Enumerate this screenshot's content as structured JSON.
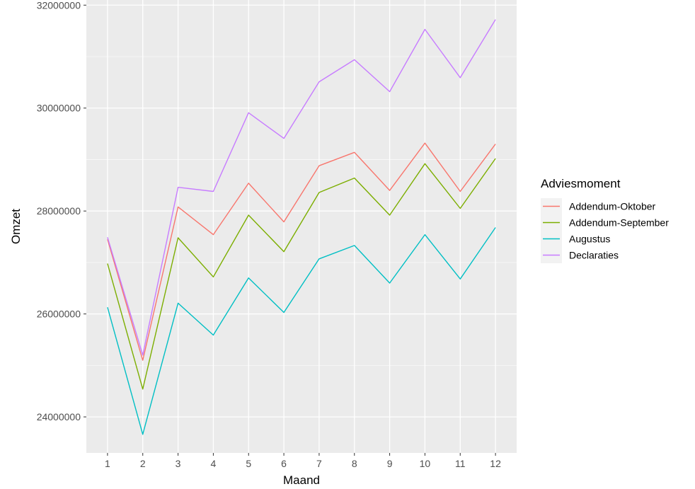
{
  "chart_data": {
    "type": "line",
    "xlabel": "Maand",
    "ylabel": "Omzet",
    "x": [
      1,
      2,
      3,
      4,
      5,
      6,
      7,
      8,
      9,
      10,
      11,
      12
    ],
    "ylim": [
      23300000,
      32100000
    ],
    "yticks": [
      24000000,
      26000000,
      28000000,
      30000000,
      32000000
    ],
    "ytick_labels": [
      "24000000",
      "26000000",
      "28000000",
      "30000000",
      "32000000"
    ],
    "xtick_labels": [
      "1",
      "2",
      "3",
      "4",
      "5",
      "6",
      "7",
      "8",
      "9",
      "10",
      "11",
      "12"
    ],
    "grid": true,
    "legend": {
      "title": "Adviesmoment",
      "position": "right"
    },
    "series": [
      {
        "name": "Addendum-Oktober",
        "color": "#F8766D",
        "values": [
          27450000,
          25100000,
          28080000,
          27540000,
          28540000,
          27790000,
          28880000,
          29140000,
          28400000,
          29320000,
          28380000,
          29300000
        ]
      },
      {
        "name": "Addendum-September",
        "color": "#7CAE00",
        "values": [
          26980000,
          24540000,
          27480000,
          26720000,
          27920000,
          27210000,
          28360000,
          28640000,
          27920000,
          28920000,
          28050000,
          29020000
        ]
      },
      {
        "name": "Augustus",
        "color": "#00BFC4",
        "values": [
          26130000,
          23660000,
          26210000,
          25590000,
          26700000,
          26030000,
          27070000,
          27330000,
          26600000,
          27540000,
          26680000,
          27680000
        ]
      },
      {
        "name": "Declaraties",
        "color": "#C77CFF",
        "values": [
          27490000,
          25200000,
          28460000,
          28380000,
          29910000,
          29410000,
          30510000,
          30940000,
          30320000,
          31530000,
          30590000,
          31720000
        ]
      }
    ]
  }
}
